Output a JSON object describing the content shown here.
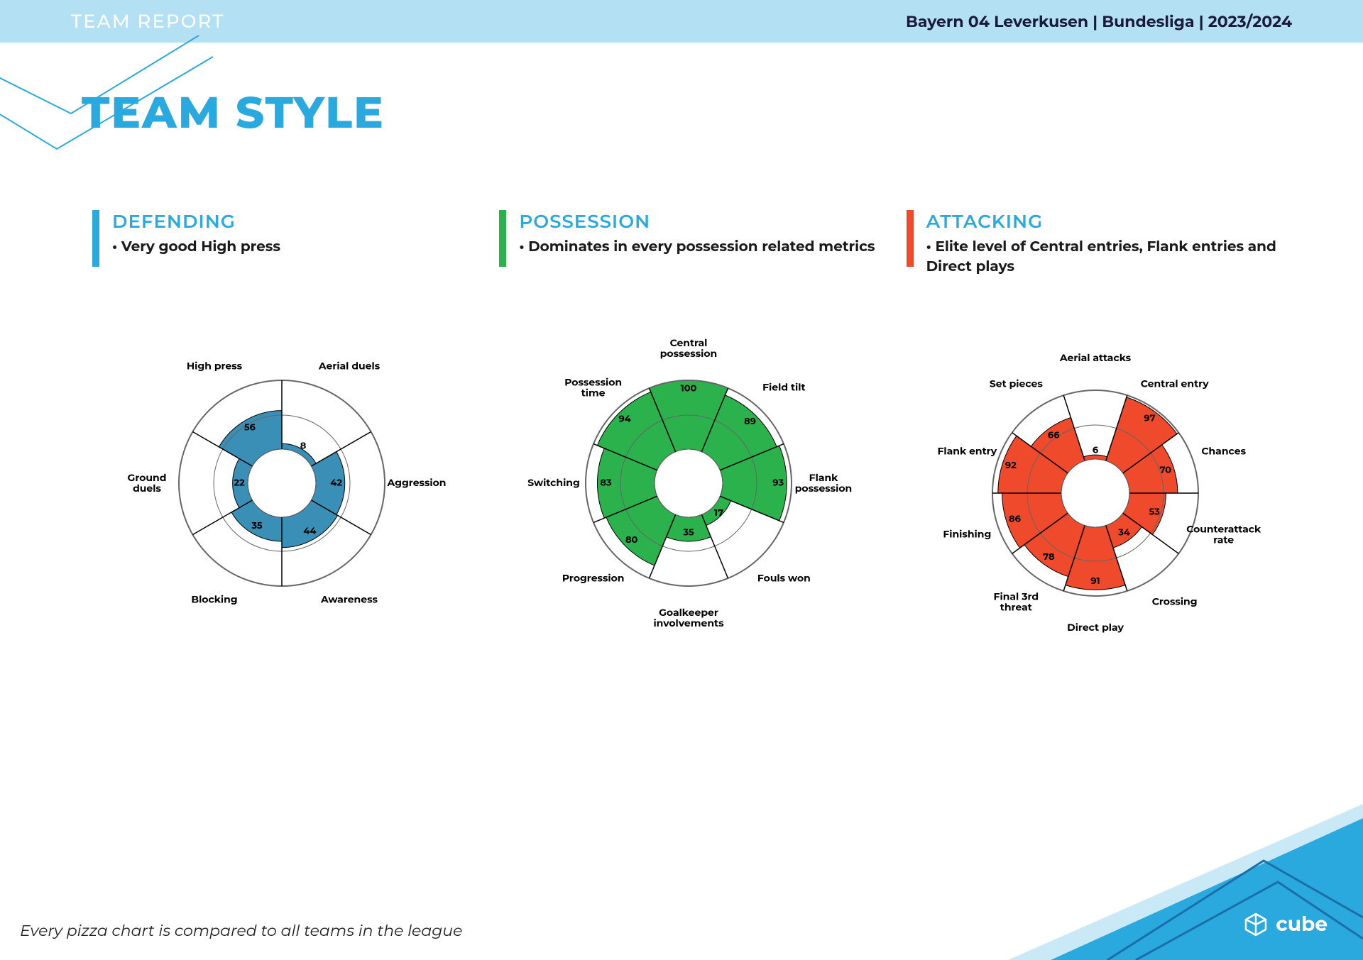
{
  "header": {
    "left": "TEAM REPORT",
    "right": "Bayern 04 Leverkusen | Bundesliga |  2023/2024",
    "bg_color": "#b3e0f2"
  },
  "title": "TEAM STYLE",
  "title_color": "#2aa9df",
  "footnote": "Every pizza chart is compared to all teams in the league",
  "logo_text": "cube",
  "chart_common": {
    "outer_radius": 145,
    "inner_radius": 48,
    "mid_circle_radius": 96,
    "label_radius": 190,
    "svg_size": 470,
    "ring_stroke": "#666666",
    "ring_stroke_width": 2
  },
  "sections": [
    {
      "id": "defending",
      "title": "DEFENDING",
      "title_color": "#2aa9df",
      "bar_color": "#2aa9df",
      "bullet": "Very good High press",
      "fill_color": "#3a8fb7",
      "start_angle_deg": -60,
      "slices": [
        {
          "label": "High press",
          "value": 56
        },
        {
          "label": "Aerial duels",
          "value": 8
        },
        {
          "label": "Aggression",
          "value": 42
        },
        {
          "label": "Awareness",
          "value": 44
        },
        {
          "label": "Blocking",
          "value": 35
        },
        {
          "label": "Ground\nduels",
          "value": 22
        }
      ]
    },
    {
      "id": "possession",
      "title": "POSSESSION",
      "title_color": "#2aa9df",
      "bar_color": "#2bb24c",
      "bullet": "Dominates in every possession related metrics",
      "fill_color": "#2bb24c",
      "start_angle_deg": -67.5,
      "slices": [
        {
          "label": "Possession\ntime",
          "value": 94
        },
        {
          "label": "Central\npossession",
          "value": 100
        },
        {
          "label": "Field tilt",
          "value": 89
        },
        {
          "label": "Flank\npossession",
          "value": 93
        },
        {
          "label": "Fouls won",
          "value": 17
        },
        {
          "label": "Goalkeeper\ninvolvements",
          "value": 35
        },
        {
          "label": "Progression",
          "value": 80
        },
        {
          "label": "Switching",
          "value": 83
        }
      ]
    },
    {
      "id": "attacking",
      "title": "ATTACKING",
      "title_color": "#2aa9df",
      "bar_color": "#ef4a2b",
      "bullet": "Elite level of Central entries, Flank entries and Direct plays",
      "fill_color": "#ef4a2b",
      "start_angle_deg": -54,
      "slices": [
        {
          "label": "Set pieces",
          "value": 66
        },
        {
          "label": "Aerial attacks",
          "value": 6
        },
        {
          "label": "Central entry",
          "value": 97
        },
        {
          "label": "Chances",
          "value": 70
        },
        {
          "label": "Counterattack\nrate",
          "value": 53
        },
        {
          "label": "Crossing",
          "value": 34
        },
        {
          "label": "Direct play",
          "value": 91
        },
        {
          "label": "Final 3rd\nthreat",
          "value": 78
        },
        {
          "label": "Finishing",
          "value": 86
        },
        {
          "label": "Flank entry",
          "value": 92
        }
      ]
    }
  ]
}
